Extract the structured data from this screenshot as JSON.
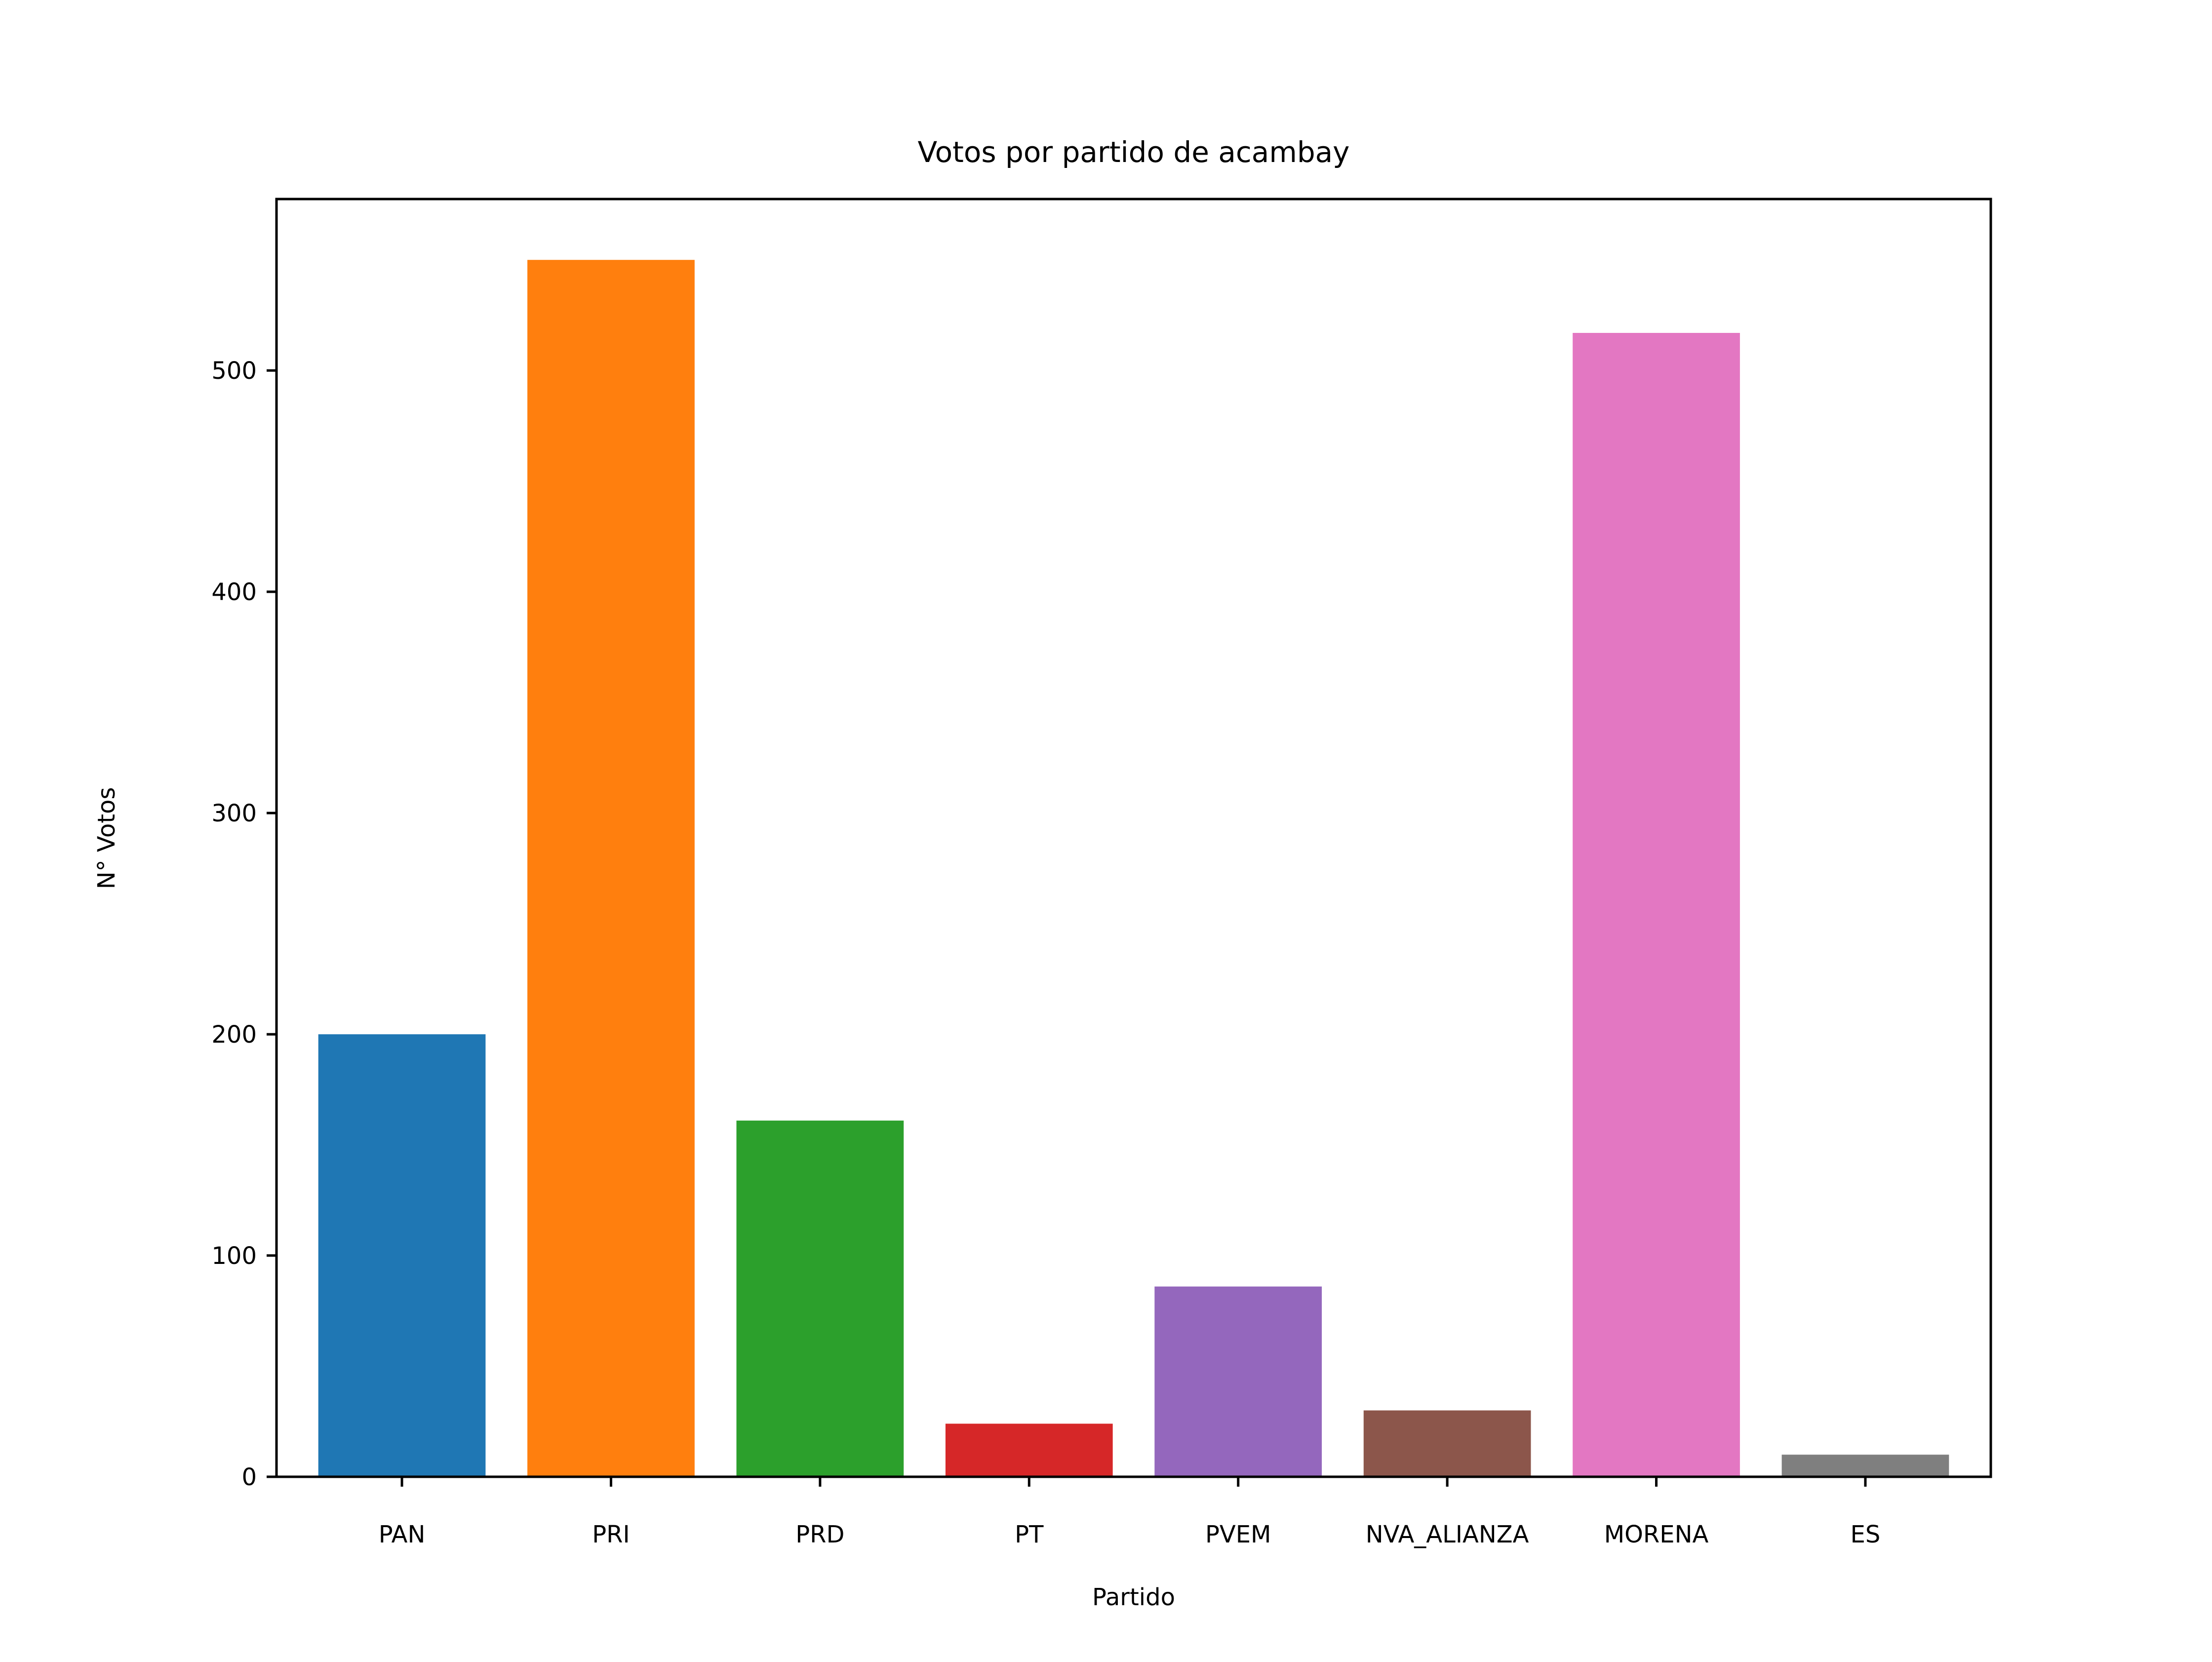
{
  "chart_data": {
    "type": "bar",
    "title": "Votos por partido de acambay",
    "xlabel": "Partido",
    "ylabel": "N° Votos",
    "categories": [
      "PAN",
      "PRI",
      "PRD",
      "PT",
      "PVEM",
      "NVA_ALIANZA",
      "MORENA",
      "ES"
    ],
    "values": [
      200,
      550,
      161,
      24,
      86,
      30,
      517,
      10
    ],
    "colors": [
      "#1f77b4",
      "#ff7f0e",
      "#2ca02c",
      "#d62728",
      "#9467bd",
      "#8c564b",
      "#e377c2",
      "#7f7f7f"
    ],
    "yticks": [
      0,
      100,
      200,
      300,
      400,
      500
    ],
    "ylim": [
      0,
      577.5
    ],
    "grid": false,
    "legend": false
  }
}
